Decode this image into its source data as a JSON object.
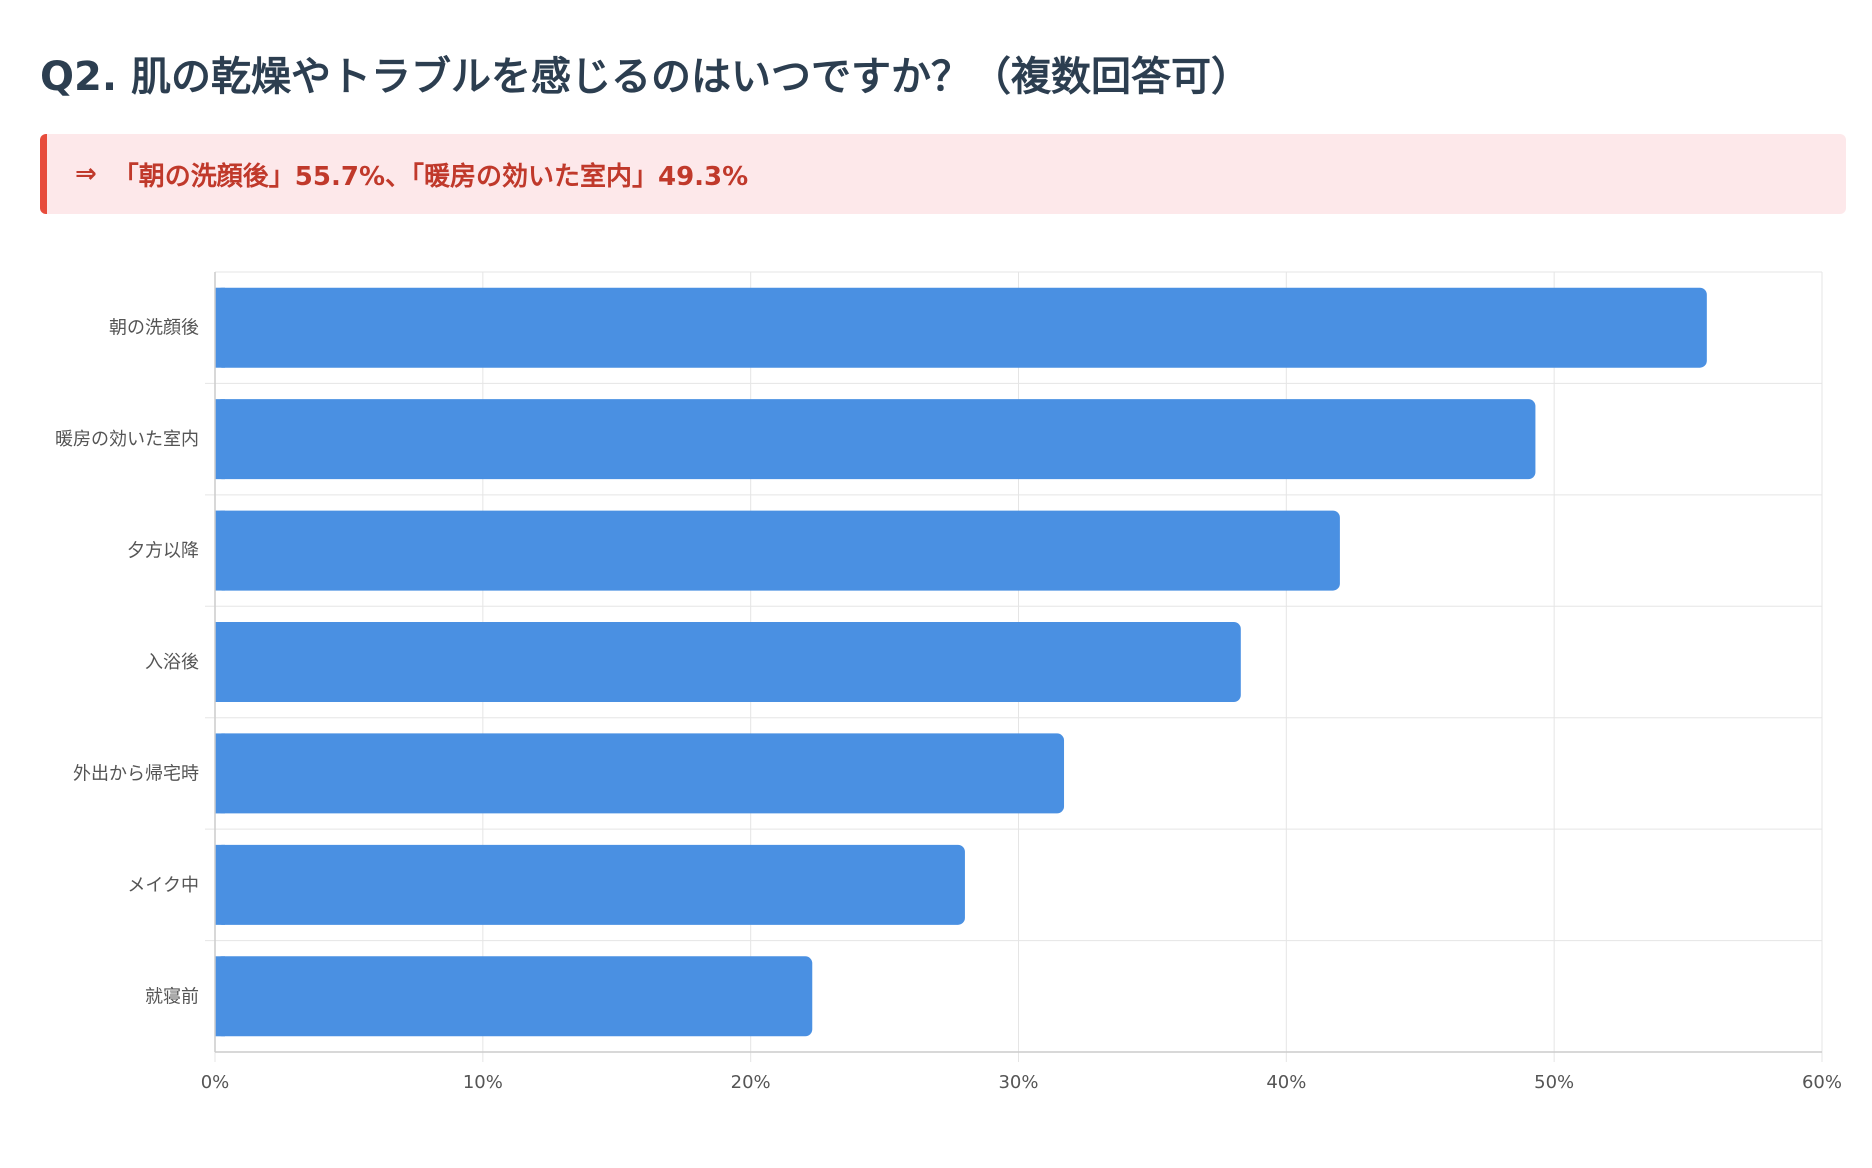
{
  "title": "Q2. 肌の乾燥やトラブルを感じるのはいつですか？（複数回答可）",
  "callout": {
    "arrow": "⇒",
    "text": "「朝の洗顔後」55.7%、「暖房の効いた室内」49.3%"
  },
  "colors": {
    "bar": "#4a90e2",
    "grid": "#e5e5e5",
    "axis": "#cccccc",
    "callout_bg": "#fde8ea",
    "callout_border": "#e74c3c",
    "callout_text": "#c0392b",
    "title": "#2c3e50"
  },
  "chart_data": {
    "type": "bar",
    "orientation": "horizontal",
    "title": "Q2. 肌の乾燥やトラブルを感じるのはいつですか？（複数回答可）",
    "categories": [
      "朝の洗顔後",
      "暖房の効いた室内",
      "夕方以降",
      "入浴後",
      "外出から帰宅時",
      "メイク中",
      "就寝前"
    ],
    "values": [
      55.7,
      49.3,
      42.0,
      38.3,
      31.7,
      28.0,
      22.3
    ],
    "unit": "%",
    "xlim": [
      0,
      60
    ],
    "xticks": [
      0,
      10,
      20,
      30,
      40,
      50,
      60
    ],
    "tick_labels": [
      "0%",
      "10%",
      "20%",
      "30%",
      "40%",
      "50%",
      "60%"
    ],
    "xlabel": "",
    "ylabel": "",
    "grid": true
  }
}
